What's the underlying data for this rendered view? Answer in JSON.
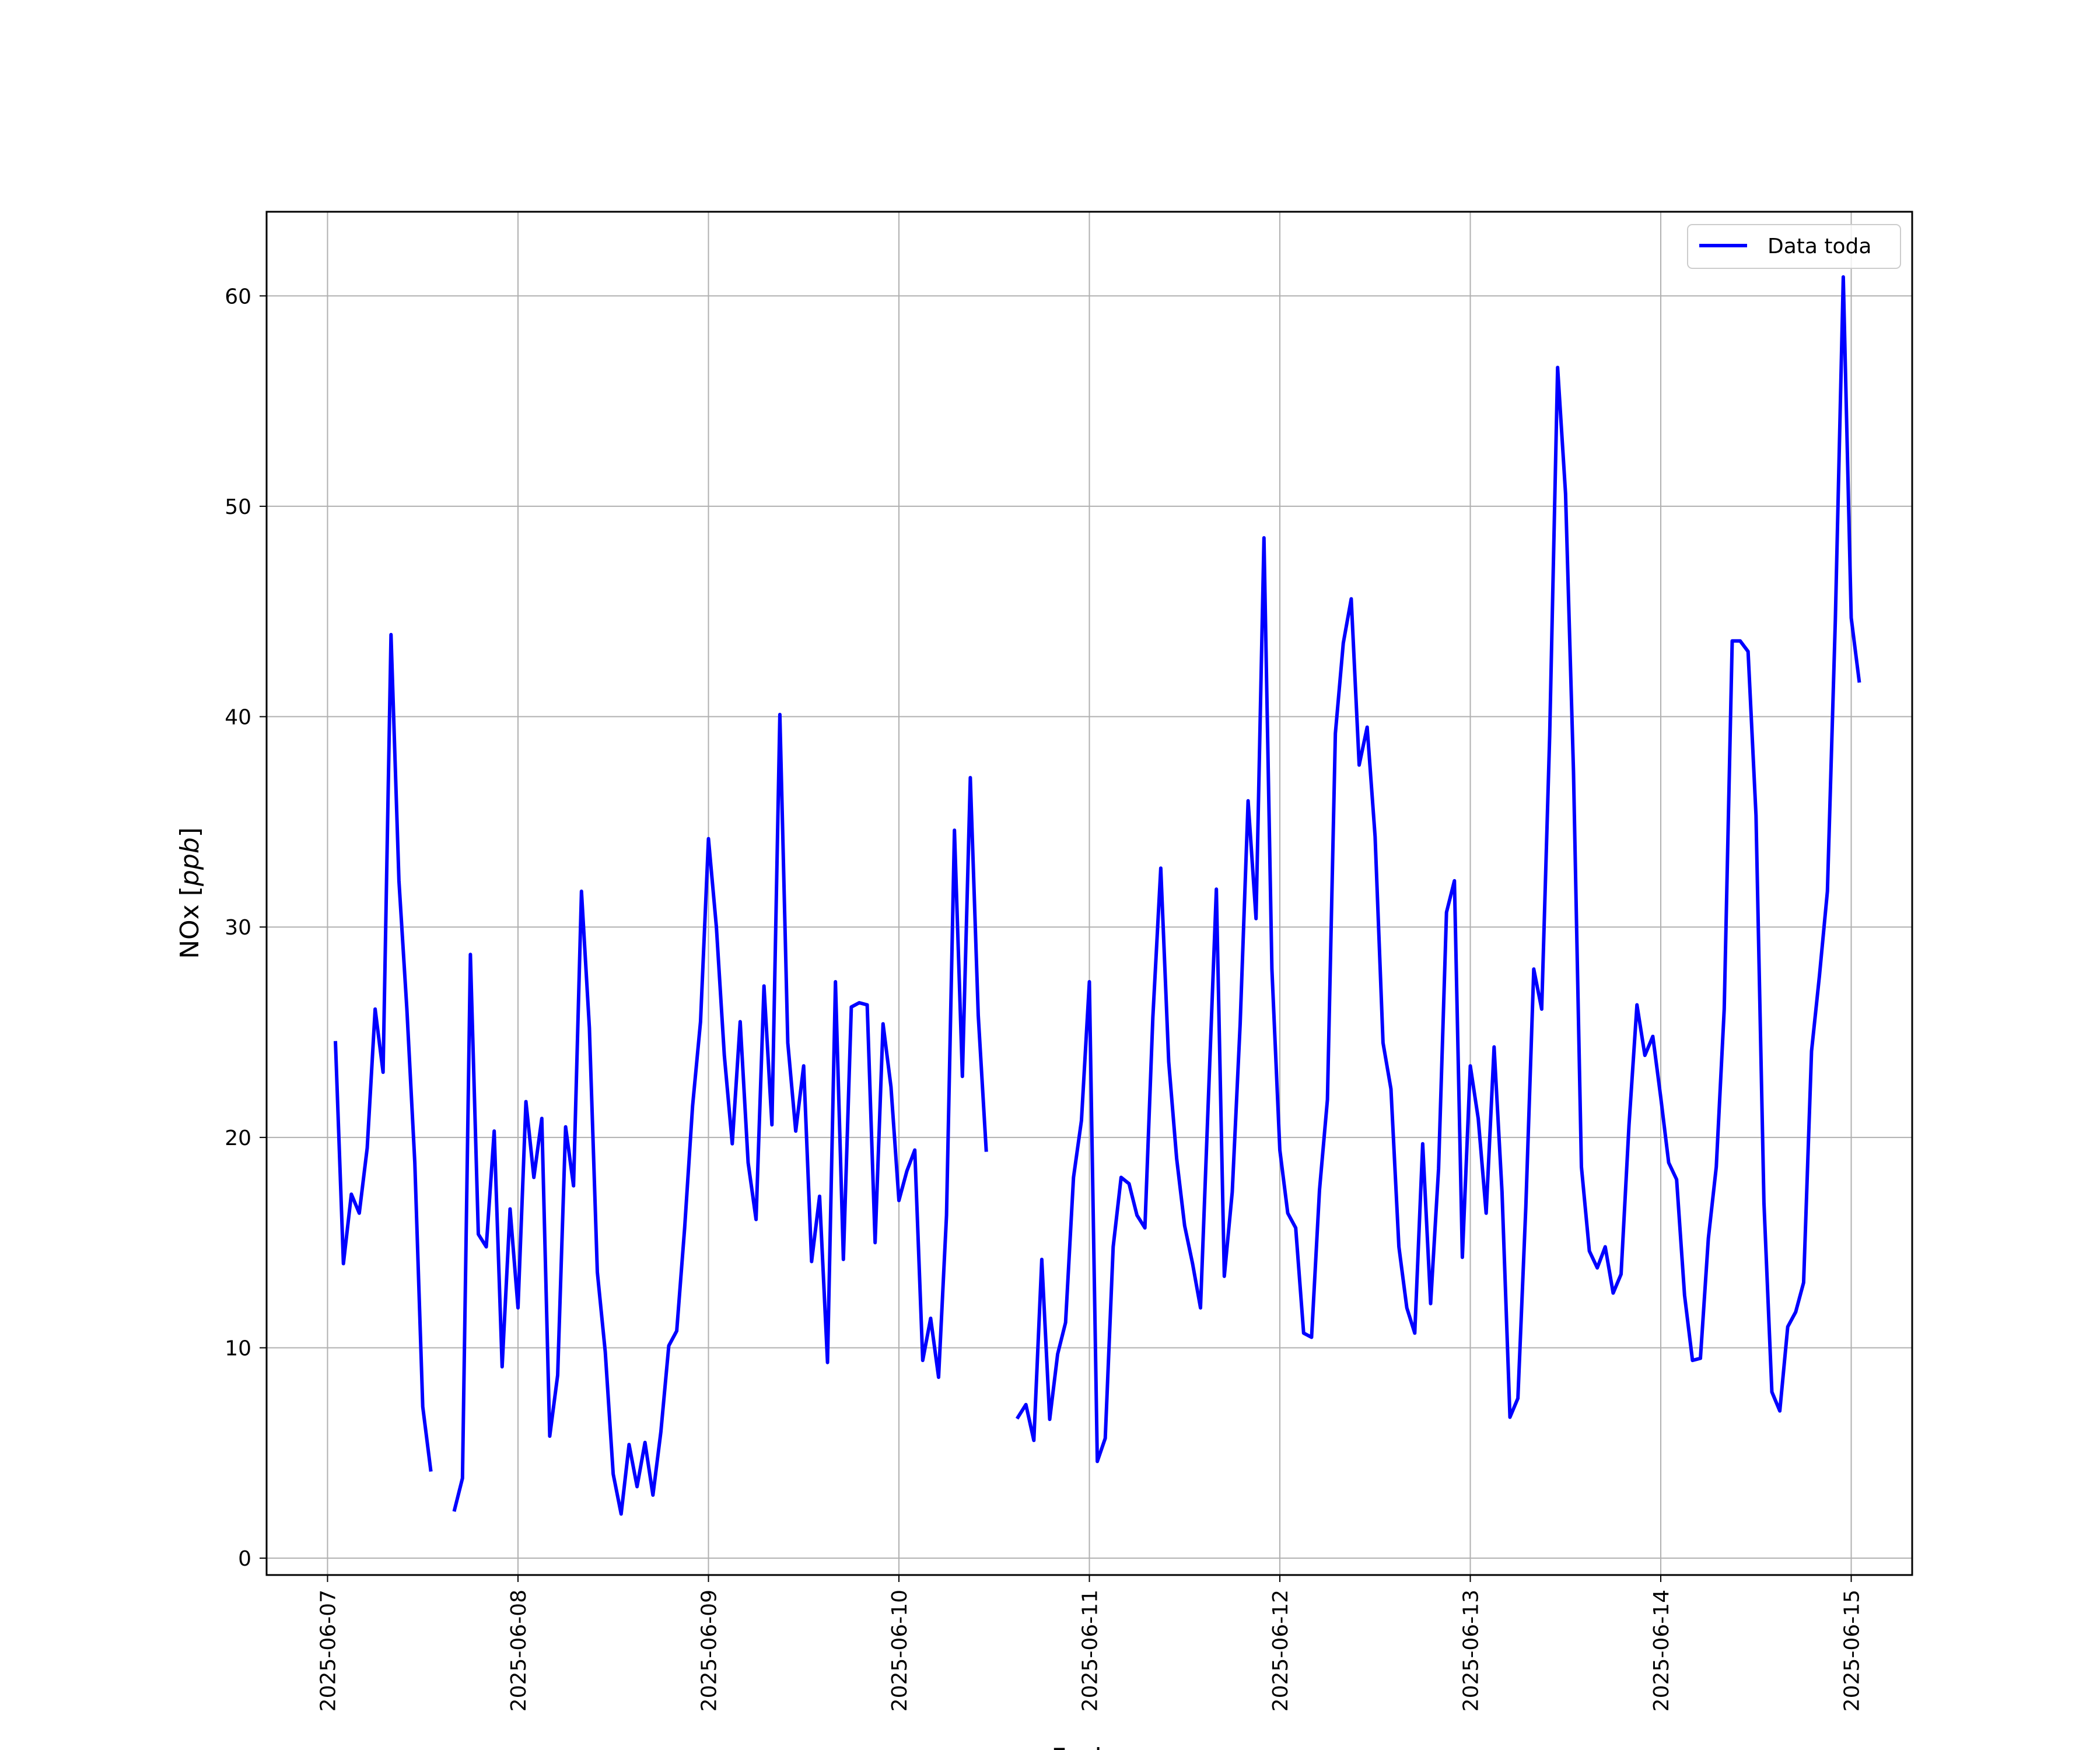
{
  "chart_data": {
    "type": "line",
    "title": "",
    "xlabel": "Fecha",
    "ylabel": "NOx [ppb]",
    "ylabel_main": "NOx [",
    "ylabel_unit": "ppb",
    "ylabel_close": "]",
    "x_start": "2025-06-07",
    "x_end": "2025-06-15",
    "x_ticks": [
      "2025-06-07",
      "2025-06-08",
      "2025-06-09",
      "2025-06-10",
      "2025-06-11",
      "2025-06-12",
      "2025-06-13",
      "2025-06-14",
      "2025-06-15"
    ],
    "ylim": [
      -0.8,
      64
    ],
    "y_ticks": [
      0,
      10,
      20,
      30,
      40,
      50,
      60
    ],
    "y_tick_labels": [
      "0",
      "10",
      "20",
      "30",
      "40",
      "50",
      "60"
    ],
    "grid": true,
    "legend_position": "top-right",
    "series": [
      {
        "name": "Data toda",
        "color": "#0000ff",
        "points": [
          [
            "2025-06-07 01:00",
            24.5
          ],
          [
            "2025-06-07 02:00",
            14.0
          ],
          [
            "2025-06-07 03:00",
            17.3
          ],
          [
            "2025-06-07 04:00",
            16.4
          ],
          [
            "2025-06-07 05:00",
            19.5
          ],
          [
            "2025-06-07 06:00",
            26.1
          ],
          [
            "2025-06-07 07:00",
            23.1
          ],
          [
            "2025-06-07 08:00",
            43.9
          ],
          [
            "2025-06-07 09:00",
            32.2
          ],
          [
            "2025-06-07 10:00",
            26.1
          ],
          [
            "2025-06-07 11:00",
            18.8
          ],
          [
            "2025-06-07 12:00",
            7.2
          ],
          [
            "2025-06-07 13:00",
            4.2
          ],
          [
            "2025-06-07 14:00",
            null
          ],
          [
            "2025-06-07 15:00",
            null
          ],
          [
            "2025-06-07 16:00",
            2.3
          ],
          [
            "2025-06-07 17:00",
            3.8
          ],
          [
            "2025-06-07 18:00",
            28.7
          ],
          [
            "2025-06-07 19:00",
            15.4
          ],
          [
            "2025-06-07 20:00",
            14.8
          ],
          [
            "2025-06-07 21:00",
            20.3
          ],
          [
            "2025-06-07 22:00",
            9.1
          ],
          [
            "2025-06-07 23:00",
            16.6
          ],
          [
            "2025-06-08 00:00",
            11.9
          ],
          [
            "2025-06-08 01:00",
            21.7
          ],
          [
            "2025-06-08 02:00",
            18.1
          ],
          [
            "2025-06-08 03:00",
            20.9
          ],
          [
            "2025-06-08 04:00",
            5.8
          ],
          [
            "2025-06-08 05:00",
            8.7
          ],
          [
            "2025-06-08 06:00",
            20.5
          ],
          [
            "2025-06-08 07:00",
            17.7
          ],
          [
            "2025-06-08 08:00",
            31.7
          ],
          [
            "2025-06-08 09:00",
            25.2
          ],
          [
            "2025-06-08 10:00",
            13.6
          ],
          [
            "2025-06-08 11:00",
            9.8
          ],
          [
            "2025-06-08 12:00",
            4.0
          ],
          [
            "2025-06-08 13:00",
            2.1
          ],
          [
            "2025-06-08 14:00",
            5.4
          ],
          [
            "2025-06-08 15:00",
            3.4
          ],
          [
            "2025-06-08 16:00",
            5.5
          ],
          [
            "2025-06-08 17:00",
            3.0
          ],
          [
            "2025-06-08 18:00",
            6.0
          ],
          [
            "2025-06-08 19:00",
            10.1
          ],
          [
            "2025-06-08 20:00",
            10.8
          ],
          [
            "2025-06-08 21:00",
            15.7
          ],
          [
            "2025-06-08 22:00",
            21.5
          ],
          [
            "2025-06-08 23:00",
            25.5
          ],
          [
            "2025-06-09 00:00",
            34.2
          ],
          [
            "2025-06-09 01:00",
            30.0
          ],
          [
            "2025-06-09 02:00",
            23.9
          ],
          [
            "2025-06-09 03:00",
            19.7
          ],
          [
            "2025-06-09 04:00",
            25.5
          ],
          [
            "2025-06-09 05:00",
            18.8
          ],
          [
            "2025-06-09 06:00",
            16.1
          ],
          [
            "2025-06-09 07:00",
            27.2
          ],
          [
            "2025-06-09 08:00",
            20.6
          ],
          [
            "2025-06-09 09:00",
            40.1
          ],
          [
            "2025-06-09 10:00",
            24.5
          ],
          [
            "2025-06-09 11:00",
            20.3
          ],
          [
            "2025-06-09 12:00",
            23.4
          ],
          [
            "2025-06-09 13:00",
            14.1
          ],
          [
            "2025-06-09 14:00",
            17.2
          ],
          [
            "2025-06-09 15:00",
            9.3
          ],
          [
            "2025-06-09 16:00",
            27.4
          ],
          [
            "2025-06-09 17:00",
            14.2
          ],
          [
            "2025-06-09 18:00",
            26.2
          ],
          [
            "2025-06-09 19:00",
            26.4
          ],
          [
            "2025-06-09 20:00",
            26.3
          ],
          [
            "2025-06-09 21:00",
            15.0
          ],
          [
            "2025-06-09 22:00",
            25.4
          ],
          [
            "2025-06-09 23:00",
            22.4
          ],
          [
            "2025-06-10 00:00",
            17.0
          ],
          [
            "2025-06-10 01:00",
            18.4
          ],
          [
            "2025-06-10 02:00",
            19.4
          ],
          [
            "2025-06-10 03:00",
            9.4
          ],
          [
            "2025-06-10 04:00",
            11.4
          ],
          [
            "2025-06-10 05:00",
            8.6
          ],
          [
            "2025-06-10 06:00",
            16.3
          ],
          [
            "2025-06-10 07:00",
            34.6
          ],
          [
            "2025-06-10 08:00",
            22.9
          ],
          [
            "2025-06-10 09:00",
            37.1
          ],
          [
            "2025-06-10 10:00",
            25.8
          ],
          [
            "2025-06-10 11:00",
            19.4
          ],
          [
            "2025-06-10 12:00",
            null
          ],
          [
            "2025-06-10 13:00",
            null
          ],
          [
            "2025-06-10 14:00",
            null
          ],
          [
            "2025-06-10 15:00",
            6.7
          ],
          [
            "2025-06-10 16:00",
            7.3
          ],
          [
            "2025-06-10 17:00",
            5.6
          ],
          [
            "2025-06-10 18:00",
            14.2
          ],
          [
            "2025-06-10 19:00",
            6.6
          ],
          [
            "2025-06-10 20:00",
            9.7
          ],
          [
            "2025-06-10 21:00",
            11.2
          ],
          [
            "2025-06-10 22:00",
            18.1
          ],
          [
            "2025-06-10 23:00",
            20.8
          ],
          [
            "2025-06-11 00:00",
            27.4
          ],
          [
            "2025-06-11 01:00",
            4.6
          ],
          [
            "2025-06-11 02:00",
            5.7
          ],
          [
            "2025-06-11 03:00",
            14.8
          ],
          [
            "2025-06-11 04:00",
            18.1
          ],
          [
            "2025-06-11 05:00",
            17.8
          ],
          [
            "2025-06-11 06:00",
            16.3
          ],
          [
            "2025-06-11 07:00",
            15.7
          ],
          [
            "2025-06-11 08:00",
            25.7
          ],
          [
            "2025-06-11 09:00",
            32.8
          ],
          [
            "2025-06-11 10:00",
            23.6
          ],
          [
            "2025-06-11 11:00",
            19.0
          ],
          [
            "2025-06-11 12:00",
            15.8
          ],
          [
            "2025-06-11 13:00",
            14.0
          ],
          [
            "2025-06-11 14:00",
            11.9
          ],
          [
            "2025-06-11 15:00",
            21.9
          ],
          [
            "2025-06-11 16:00",
            31.8
          ],
          [
            "2025-06-11 17:00",
            13.4
          ],
          [
            "2025-06-11 18:00",
            17.4
          ],
          [
            "2025-06-11 19:00",
            25.4
          ],
          [
            "2025-06-11 20:00",
            36.0
          ],
          [
            "2025-06-11 21:00",
            30.4
          ],
          [
            "2025-06-11 22:00",
            48.5
          ],
          [
            "2025-06-11 23:00",
            28.0
          ],
          [
            "2025-06-12 00:00",
            19.4
          ],
          [
            "2025-06-12 01:00",
            16.4
          ],
          [
            "2025-06-12 02:00",
            15.7
          ],
          [
            "2025-06-12 03:00",
            10.7
          ],
          [
            "2025-06-12 04:00",
            10.5
          ],
          [
            "2025-06-12 05:00",
            17.5
          ],
          [
            "2025-06-12 06:00",
            21.8
          ],
          [
            "2025-06-12 07:00",
            39.2
          ],
          [
            "2025-06-12 08:00",
            43.5
          ],
          [
            "2025-06-12 09:00",
            45.6
          ],
          [
            "2025-06-12 10:00",
            37.7
          ],
          [
            "2025-06-12 11:00",
            39.5
          ],
          [
            "2025-06-12 12:00",
            34.3
          ],
          [
            "2025-06-12 13:00",
            24.5
          ],
          [
            "2025-06-12 14:00",
            22.3
          ],
          [
            "2025-06-12 15:00",
            14.8
          ],
          [
            "2025-06-12 16:00",
            11.9
          ],
          [
            "2025-06-12 17:00",
            10.7
          ],
          [
            "2025-06-12 18:00",
            19.7
          ],
          [
            "2025-06-12 19:00",
            12.1
          ],
          [
            "2025-06-12 20:00",
            18.5
          ],
          [
            "2025-06-12 21:00",
            30.7
          ],
          [
            "2025-06-12 22:00",
            32.2
          ],
          [
            "2025-06-12 23:00",
            14.3
          ],
          [
            "2025-06-13 00:00",
            23.4
          ],
          [
            "2025-06-13 01:00",
            20.9
          ],
          [
            "2025-06-13 02:00",
            16.4
          ],
          [
            "2025-06-13 03:00",
            24.3
          ],
          [
            "2025-06-13 04:00",
            17.4
          ],
          [
            "2025-06-13 05:00",
            6.7
          ],
          [
            "2025-06-13 06:00",
            7.6
          ],
          [
            "2025-06-13 07:00",
            16.7
          ],
          [
            "2025-06-13 08:00",
            28.0
          ],
          [
            "2025-06-13 09:00",
            26.1
          ],
          [
            "2025-06-13 10:00",
            39.1
          ],
          [
            "2025-06-13 11:00",
            56.6
          ],
          [
            "2025-06-13 12:00",
            50.6
          ],
          [
            "2025-06-13 13:00",
            37.4
          ],
          [
            "2025-06-13 14:00",
            18.6
          ],
          [
            "2025-06-13 15:00",
            14.6
          ],
          [
            "2025-06-13 16:00",
            13.8
          ],
          [
            "2025-06-13 17:00",
            14.8
          ],
          [
            "2025-06-13 18:00",
            12.6
          ],
          [
            "2025-06-13 19:00",
            13.5
          ],
          [
            "2025-06-13 20:00",
            20.6
          ],
          [
            "2025-06-13 21:00",
            26.3
          ],
          [
            "2025-06-13 22:00",
            23.9
          ],
          [
            "2025-06-13 23:00",
            24.8
          ],
          [
            "2025-06-14 00:00",
            21.9
          ],
          [
            "2025-06-14 01:00",
            18.8
          ],
          [
            "2025-06-14 02:00",
            18.0
          ],
          [
            "2025-06-14 03:00",
            12.5
          ],
          [
            "2025-06-14 04:00",
            9.4
          ],
          [
            "2025-06-14 05:00",
            9.5
          ],
          [
            "2025-06-14 06:00",
            15.2
          ],
          [
            "2025-06-14 07:00",
            18.6
          ],
          [
            "2025-06-14 08:00",
            26.1
          ],
          [
            "2025-06-14 09:00",
            43.6
          ],
          [
            "2025-06-14 10:00",
            43.6
          ],
          [
            "2025-06-14 11:00",
            43.1
          ],
          [
            "2025-06-14 12:00",
            35.3
          ],
          [
            "2025-06-14 13:00",
            16.9
          ],
          [
            "2025-06-14 14:00",
            7.9
          ],
          [
            "2025-06-14 15:00",
            7.0
          ],
          [
            "2025-06-14 16:00",
            11.0
          ],
          [
            "2025-06-14 17:00",
            11.7
          ],
          [
            "2025-06-14 18:00",
            13.1
          ],
          [
            "2025-06-14 19:00",
            24.1
          ],
          [
            "2025-06-14 20:00",
            27.7
          ],
          [
            "2025-06-14 21:00",
            31.7
          ],
          [
            "2025-06-14 22:00",
            44.6
          ],
          [
            "2025-06-14 23:00",
            60.9
          ],
          [
            "2025-06-15 00:00",
            44.7
          ],
          [
            "2025-06-15 01:00",
            41.7
          ]
        ]
      }
    ]
  }
}
